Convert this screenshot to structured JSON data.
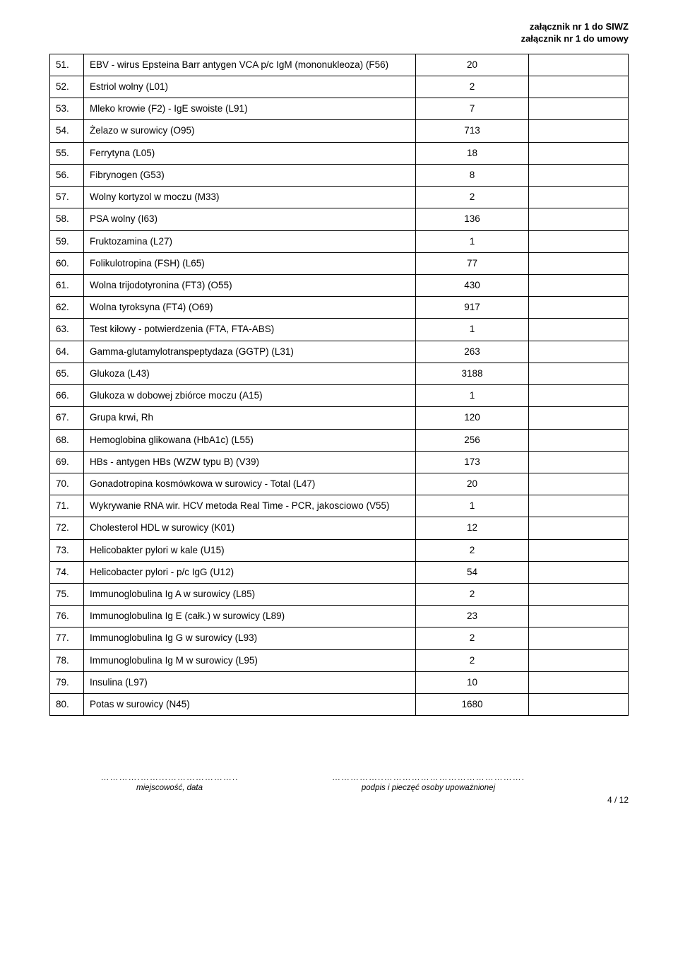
{
  "header": {
    "line1": "załącznik nr 1 do SIWZ",
    "line2": "załącznik nr 1 do umowy"
  },
  "rows": [
    {
      "n": "51.",
      "name": "EBV - wirus Epsteina Barr antygen VCA p/c IgM (mononukleoza) (F56)",
      "qty": "20"
    },
    {
      "n": "52.",
      "name": "Estriol wolny (L01)",
      "qty": "2"
    },
    {
      "n": "53.",
      "name": "Mleko krowie (F2) - IgE swoiste (L91)",
      "qty": "7"
    },
    {
      "n": "54.",
      "name": "Żelazo w surowicy (O95)",
      "qty": "713"
    },
    {
      "n": "55.",
      "name": "Ferrytyna (L05)",
      "qty": "18"
    },
    {
      "n": "56.",
      "name": "Fibrynogen (G53)",
      "qty": "8"
    },
    {
      "n": "57.",
      "name": "Wolny kortyzol w moczu (M33)",
      "qty": "2"
    },
    {
      "n": "58.",
      "name": "PSA wolny (I63)",
      "qty": "136"
    },
    {
      "n": "59.",
      "name": "Fruktozamina (L27)",
      "qty": "1"
    },
    {
      "n": "60.",
      "name": "Folikulotropina (FSH) (L65)",
      "qty": "77"
    },
    {
      "n": "61.",
      "name": "Wolna trijodotyronina (FT3) (O55)",
      "qty": "430"
    },
    {
      "n": "62.",
      "name": "Wolna tyroksyna (FT4) (O69)",
      "qty": "917"
    },
    {
      "n": "63.",
      "name": "Test kiłowy - potwierdzenia (FTA, FTA-ABS)",
      "qty": "1"
    },
    {
      "n": "64.",
      "name": "Gamma-glutamylotranspeptydaza (GGTP) (L31)",
      "qty": "263"
    },
    {
      "n": "65.",
      "name": "Glukoza (L43)",
      "qty": "3188"
    },
    {
      "n": "66.",
      "name": "Glukoza w dobowej zbiórce moczu (A15)",
      "qty": "1"
    },
    {
      "n": "67.",
      "name": "Grupa krwi, Rh",
      "qty": "120"
    },
    {
      "n": "68.",
      "name": "Hemoglobina glikowana (HbA1c) (L55)",
      "qty": "256"
    },
    {
      "n": "69.",
      "name": "HBs - antygen HBs (WZW typu B) (V39)",
      "qty": "173"
    },
    {
      "n": "70.",
      "name": "Gonadotropina kosmówkowa w surowicy - Total (L47)",
      "qty": "20"
    },
    {
      "n": "71.",
      "name": "Wykrywanie RNA wir. HCV metoda Real Time - PCR, jakosciowo (V55)",
      "qty": "1"
    },
    {
      "n": "72.",
      "name": "Cholesterol HDL w surowicy (K01)",
      "qty": "12"
    },
    {
      "n": "73.",
      "name": "Helicobakter pylori w kale (U15)",
      "qty": "2"
    },
    {
      "n": "74.",
      "name": "Helicobacter pylori - p/c IgG (U12)",
      "qty": "54"
    },
    {
      "n": "75.",
      "name": "Immunoglobulina Ig A w surowicy (L85)",
      "qty": "2"
    },
    {
      "n": "76.",
      "name": "Immunoglobulina Ig E (całk.) w surowicy (L89)",
      "qty": "23"
    },
    {
      "n": "77.",
      "name": "Immunoglobulina Ig G w surowicy (L93)",
      "qty": "2"
    },
    {
      "n": "78.",
      "name": "Immunoglobulina Ig M w surowicy (L95)",
      "qty": "2"
    },
    {
      "n": "79.",
      "name": "Insulina (L97)",
      "qty": "10"
    },
    {
      "n": "80.",
      "name": "Potas w surowicy (N45)",
      "qty": "1680"
    }
  ],
  "footer": {
    "dots_short": "………….……...…………………..",
    "dots_long": "……………..……………………………………….",
    "left_label": "miejscowość, data",
    "right_label": "podpis i pieczęć osoby upoważnionej",
    "page_number": "4 / 12"
  }
}
